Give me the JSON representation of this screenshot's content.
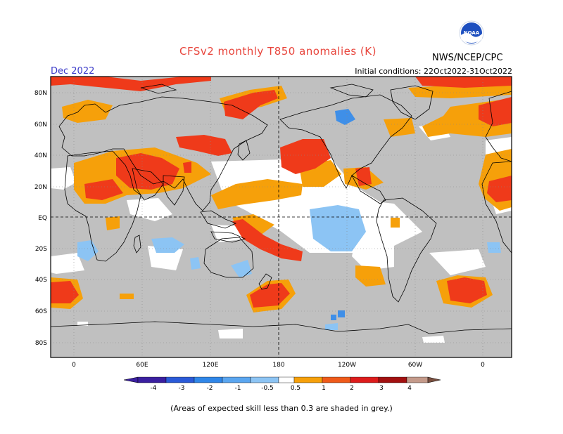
{
  "header": {
    "title": "CFSv2 monthly T850 anomalies (K)",
    "agency": "NWS/NCEP/CPC",
    "month": "Dec 2022",
    "initial_conditions": "Initial conditions: 22Oct2022-31Oct2022"
  },
  "logo": {
    "text": "NOAA",
    "icon": "noaa-logo-icon"
  },
  "map": {
    "projection": "cylindrical equidistant",
    "lat_labels": [
      "80N",
      "60N",
      "40N",
      "20N",
      "EQ",
      "20S",
      "40S",
      "60S",
      "80S"
    ],
    "lon_labels": [
      "0",
      "60E",
      "120E",
      "180",
      "120W",
      "60W",
      "0"
    ],
    "colors": {
      "skill_grey": "#c0c0c0",
      "ocean_white": "#ffffff",
      "coast": "#000000"
    }
  },
  "colorbar": {
    "labels": [
      "-4",
      "-3",
      "-2",
      "-1",
      "-0.5",
      "0.5",
      "1",
      "2",
      "3",
      "4"
    ],
    "colors": [
      "#3a1fa0",
      "#2a5ad8",
      "#2f86e8",
      "#5aa6f0",
      "#8cc4f4",
      "#ffffff",
      "#f6a00a",
      "#ef5a1a",
      "#dd1c1c",
      "#a21010",
      "#c49a8a",
      "#7a5040"
    ]
  },
  "footnote": "(Areas of expected skill less than 0.3 are shaded in grey.)"
}
